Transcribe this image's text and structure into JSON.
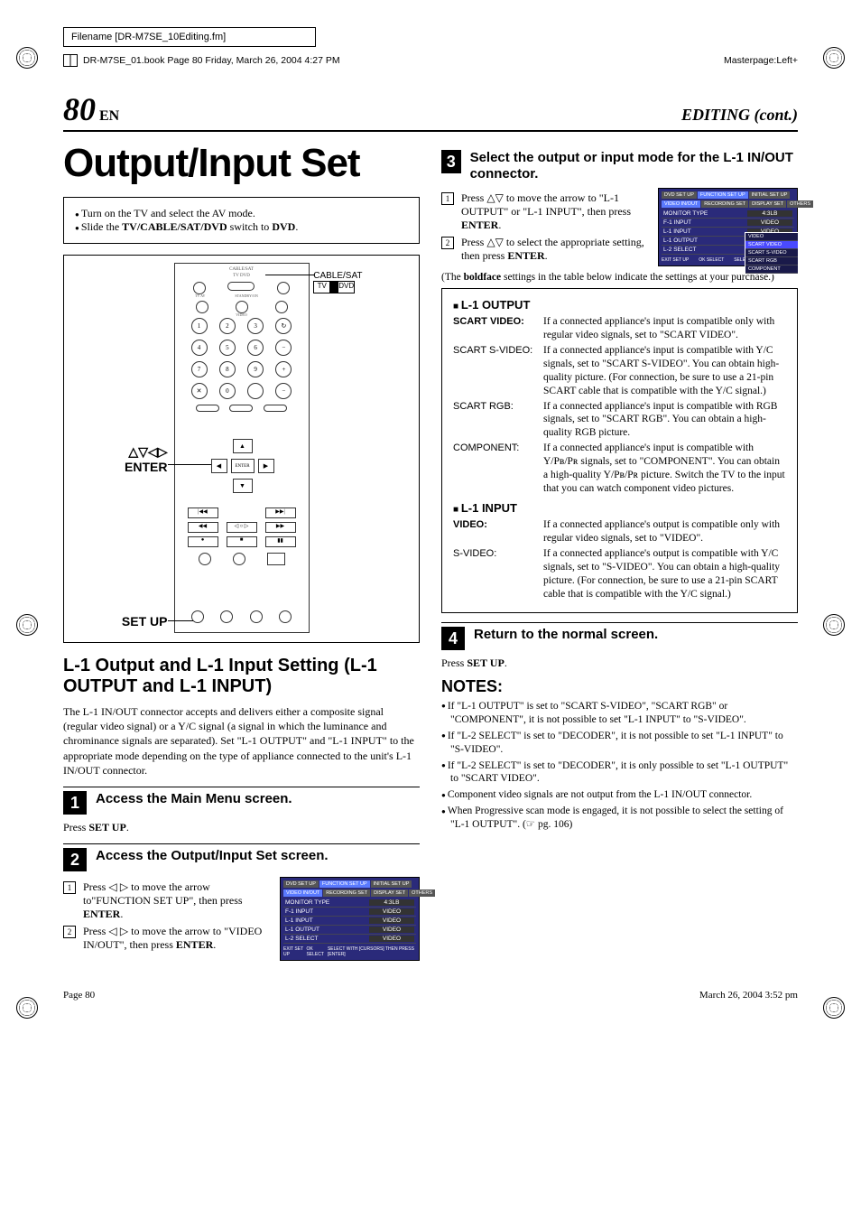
{
  "meta": {
    "filename_label": "Filename [DR-M7SE_10Editing.fm]",
    "book_line": "DR-M7SE_01.book  Page 80  Friday, March 26, 2004  4:27 PM",
    "masterpage": "Masterpage:Left+"
  },
  "header": {
    "page_num": "80",
    "page_lang": "EN",
    "section": "EDITING (cont.)"
  },
  "title": "Output/Input Set",
  "intro": {
    "items": [
      "Turn on the TV and select the AV mode.",
      "Slide the TV/CABLE/SAT/DVD switch to DVD."
    ],
    "bold1a": "TV/CABLE/SAT/DVD",
    "bold1b": "DVD"
  },
  "remote": {
    "switch_label": "CABLE/SAT",
    "switch_tv": "TV",
    "switch_dvd": "DVD",
    "label_enter_nav": "△▽◁▷",
    "label_enter": "ENTER",
    "label_setup": "SET UP",
    "tiny_labels": {
      "top_row": "CABLE/SAT",
      "tv_line": "TV    DVD",
      "standby": "STANDBY/ON",
      "tv_av": "TV AV",
      "video": "VIDEO",
      "abc": "ABC",
      "def": "DEF",
      "ghi": "GHI",
      "jkl": "JKL",
      "mno": "MNO",
      "pqrs": "PQRS",
      "tuv": "TUV",
      "wxyz": "WXYZ",
      "cancel": "CANCEL",
      "aux": "AUX",
      "memomark": "MEMO/MARK",
      "receiver": "RECEIVER",
      "progcheck": "PROG/CHECK",
      "satid": "SAT/ID",
      "timer": "TIMER",
      "topmenu": "TOP MENU",
      "navigation": "NAVIGATION",
      "enter_btn": "ENTER",
      "menu": "MENU",
      "return": "RETURN",
      "previous": "PREVIOUS",
      "next": "NEXT",
      "slow_minus": "SLOW −",
      "playselect": "PLAY/SELECT",
      "slow_plus": "SLOW +",
      "rec": "REC",
      "stopclear": "STOP/CLEAR",
      "pause": "PAUSE",
      "recmode": "REC MODE",
      "livecheck": "LIVE CHECK",
      "setup": "SET UP",
      "display": "DISPLAY",
      "onscreen": "ON SCREEN",
      "open": "OPEN",
      "close": "CLOSE"
    }
  },
  "section2": {
    "heading": "L-1 Output and L-1 Input Setting (L-1 OUTPUT and L-1 INPUT)",
    "body": "The L-1 IN/OUT connector accepts and delivers either a composite signal (regular video signal) or a Y/C signal (a signal in which the luminance and chrominance signals are separated). Set \"L-1 OUTPUT\" and \"L-1 INPUT\" to the appropriate mode depending on the type of appliance connected to the unit's L-1 IN/OUT connector."
  },
  "steps": {
    "s1": {
      "title": "Access the Main Menu screen.",
      "body_pre": "Press ",
      "body_bold": "SET UP",
      "body_post": "."
    },
    "s2": {
      "title": "Access the Output/Input Set screen.",
      "sub1": "Press ◁ ▷ to move the arrow to\"FUNCTION SET UP\", then press ENTER.",
      "sub2": "Press ◁ ▷ to move the arrow to \"VIDEO IN/OUT\", then press ENTER."
    },
    "s3": {
      "title": "Select the output or input mode for the L-1 IN/OUT connector.",
      "sub1": "Press △▽ to move the arrow to \"L-1 OUTPUT\" or \"L-1 INPUT\", then press ENTER.",
      "sub2": "Press △▽ to select the appropriate setting, then press ENTER.",
      "note_pre": "(The ",
      "note_bold": "boldface",
      "note_post": " settings in the table below indicate the settings at your purchase.)"
    },
    "s4": {
      "title": "Return to the normal screen.",
      "body_pre": "Press ",
      "body_bold": "SET UP",
      "body_post": "."
    }
  },
  "menu1": {
    "tabs_top": [
      "DVD SET UP",
      "FUNCTION SET UP",
      "INITIAL SET UP"
    ],
    "tabs_sub": [
      "VIDEO IN/OUT",
      "RECORDING SET",
      "DISPLAY SET",
      "OTHERS"
    ],
    "rows": [
      {
        "label": "MONITOR TYPE",
        "value": "4:3LB"
      },
      {
        "label": "F-1 INPUT",
        "value": "VIDEO"
      },
      {
        "label": "L-1 INPUT",
        "value": "VIDEO"
      },
      {
        "label": "L-1 OUTPUT",
        "value": "VIDEO"
      },
      {
        "label": "L-2 SELECT",
        "value": "VIDEO"
      }
    ],
    "footer_left": "EXIT    SET UP",
    "footer_mid": "OK    SELECT",
    "footer_right": "SELECT WITH [CURSORS] THEN PRESS [ENTER]"
  },
  "menu2": {
    "tabs_top": [
      "DVD SET UP",
      "FUNCTION SET UP",
      "INITIAL SET UP"
    ],
    "tabs_sub": [
      "VIDEO IN/OUT",
      "RECORDING SET",
      "DISPLAY SET",
      "OTHERS"
    ],
    "rows": [
      {
        "label": "MONITOR TYPE",
        "value": "4:3LB"
      },
      {
        "label": "F-1 INPUT",
        "value": "VIDEO"
      },
      {
        "label": "L-1 INPUT",
        "value": "VIDEO"
      },
      {
        "label": "L-1 OUTPUT",
        "value": ""
      },
      {
        "label": "L-2 SELECT",
        "value": ""
      }
    ],
    "popup": [
      "VIDEO",
      "SCART VIDEO",
      "SCART S-VIDEO",
      "SCART RGB",
      "COMPONENT"
    ],
    "footer_left": "EXIT    SET UP",
    "footer_mid": "OK    SELECT",
    "footer_right": "SELECT WITH    THEN PRESS"
  },
  "settings": {
    "l1_output": {
      "head": "L-1 OUTPUT",
      "rows": [
        {
          "label": "SCART VIDEO:",
          "bold": true,
          "desc": "If a connected appliance's input is compatible only with regular video signals, set to \"SCART VIDEO\"."
        },
        {
          "label": "SCART S-VIDEO:",
          "bold": false,
          "desc": "If a connected appliance's input is compatible with Y/C signals, set to \"SCART S-VIDEO\". You can obtain high-quality picture. (For connection, be sure to use a 21-pin SCART cable that is compatible with the Y/C signal.)"
        },
        {
          "label": "SCART RGB:",
          "bold": false,
          "desc": "If a connected appliance's input is compatible with RGB signals, set to \"SCART RGB\". You can obtain a high-quality RGB picture."
        },
        {
          "label": "COMPONENT:",
          "bold": false,
          "desc": "If a connected appliance's input is compatible with Y/Pʙ/Pʀ signals, set to \"COMPONENT\". You can obtain a high-quality Y/Pʙ/Pʀ picture. Switch the TV to the input that you can watch component video pictures."
        }
      ]
    },
    "l1_input": {
      "head": "L-1 INPUT",
      "rows": [
        {
          "label": "VIDEO:",
          "bold": true,
          "desc": "If a connected appliance's output is compatible only with regular video signals, set to \"VIDEO\"."
        },
        {
          "label": "S-VIDEO:",
          "bold": false,
          "desc": "If a connected appliance's output is compatible with Y/C signals, set to \"S-VIDEO\". You can obtain a high-quality picture. (For connection, be sure to use a 21-pin SCART cable that is compatible with the Y/C signal.)"
        }
      ]
    }
  },
  "notes": {
    "head": "NOTES:",
    "items": [
      "If \"L-1 OUTPUT\" is set to \"SCART S-VIDEO\", \"SCART RGB\" or \"COMPONENT\", it is not possible to set \"L-1 INPUT\" to \"S-VIDEO\".",
      "If \"L-2 SELECT\" is set to \"DECODER\", it is not possible to set \"L-1 INPUT\" to \"S-VIDEO\".",
      "If \"L-2 SELECT\" is set to \"DECODER\", it is only possible to set \"L-1 OUTPUT\" to \"SCART VIDEO\".",
      "Component video signals are not output from the L-1 IN/OUT connector.",
      "When Progressive scan mode is engaged, it is not possible to select the setting of \"L-1 OUTPUT\". (☞ pg. 106)"
    ]
  },
  "footer": {
    "left": "Page 80",
    "right": "March 26, 2004  3:52 pm"
  }
}
